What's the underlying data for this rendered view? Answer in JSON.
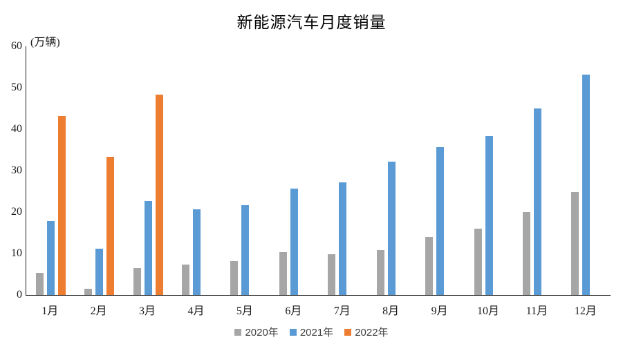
{
  "title": "新能源汽车月度销量",
  "unit_label": "(万辆)",
  "chart_data": {
    "type": "bar",
    "title": "新能源汽车月度销量",
    "ylabel": "(万辆)",
    "xlabel": "",
    "ylim": [
      0,
      60
    ],
    "yticks": [
      0,
      10,
      20,
      30,
      40,
      50,
      60
    ],
    "grid": false,
    "legend_position": "bottom",
    "categories": [
      "1月",
      "2月",
      "3月",
      "4月",
      "5月",
      "6月",
      "7月",
      "8月",
      "9月",
      "10月",
      "11月",
      "12月"
    ],
    "series": [
      {
        "name": "2020年",
        "color": "#A6A6A6",
        "values": [
          5.3,
          1.5,
          6.5,
          7.4,
          8.2,
          10.4,
          9.8,
          10.9,
          14.0,
          16.0,
          20.0,
          24.8
        ]
      },
      {
        "name": "2021年",
        "color": "#5B9BD5",
        "values": [
          17.9,
          11.1,
          22.6,
          20.6,
          21.7,
          25.6,
          27.1,
          32.1,
          35.7,
          38.3,
          45.0,
          53.1
        ]
      },
      {
        "name": "2022年",
        "color": "#ED7D31",
        "values": [
          43.1,
          33.4,
          48.4,
          null,
          null,
          null,
          null,
          null,
          null,
          null,
          null,
          null
        ]
      }
    ]
  }
}
